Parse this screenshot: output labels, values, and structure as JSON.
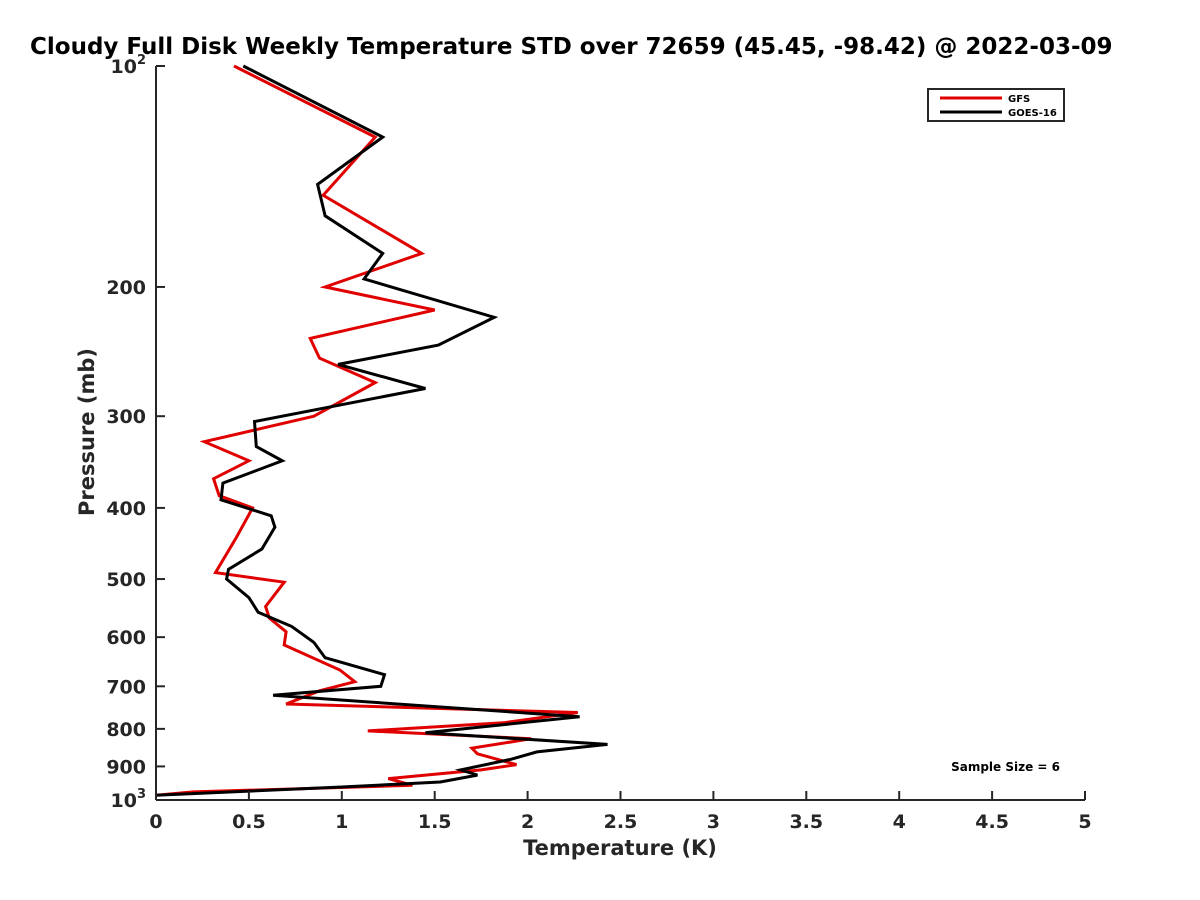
{
  "chart_data": {
    "type": "line",
    "title": "Cloudy Full Disk Weekly Temperature STD over 72659 (45.45, -98.42) @ 2022-03-09",
    "xlabel": "Temperature (K)",
    "ylabel": "Pressure (mb)",
    "xlim": [
      0,
      5
    ],
    "ylim": [
      100,
      1000
    ],
    "y_scale": "log",
    "y_reversed": true,
    "grid": false,
    "legend_position": "top-right",
    "x_ticks": [
      {
        "value": 0,
        "label": "0"
      },
      {
        "value": 0.5,
        "label": "0.5"
      },
      {
        "value": 1,
        "label": "1"
      },
      {
        "value": 1.5,
        "label": "1.5"
      },
      {
        "value": 2,
        "label": "2"
      },
      {
        "value": 2.5,
        "label": "2.5"
      },
      {
        "value": 3,
        "label": "3"
      },
      {
        "value": 3.5,
        "label": "3.5"
      },
      {
        "value": 4,
        "label": "4"
      },
      {
        "value": 4.5,
        "label": "4.5"
      },
      {
        "value": 5,
        "label": "5"
      }
    ],
    "y_ticks": [
      {
        "value": 100,
        "base": "10",
        "exp": "2"
      },
      {
        "value": 200,
        "label": "200"
      },
      {
        "value": 300,
        "label": "300"
      },
      {
        "value": 400,
        "label": "400"
      },
      {
        "value": 500,
        "label": "500"
      },
      {
        "value": 600,
        "label": "600"
      },
      {
        "value": 700,
        "label": "700"
      },
      {
        "value": 800,
        "label": "800"
      },
      {
        "value": 900,
        "label": "900"
      },
      {
        "value": 1000,
        "base": "10",
        "exp": "3"
      }
    ],
    "series": [
      {
        "name": "GFS",
        "color": "#e00000",
        "points": [
          [
            0.42,
            100
          ],
          [
            1.18,
            125
          ],
          [
            0.9,
            150
          ],
          [
            1.43,
            180
          ],
          [
            0.91,
            200
          ],
          [
            1.5,
            215
          ],
          [
            0.83,
            235
          ],
          [
            0.88,
            250
          ],
          [
            1.18,
            270
          ],
          [
            0.85,
            300
          ],
          [
            0.26,
            325
          ],
          [
            0.5,
            345
          ],
          [
            0.31,
            365
          ],
          [
            0.34,
            385
          ],
          [
            0.52,
            400
          ],
          [
            0.43,
            440
          ],
          [
            0.32,
            490
          ],
          [
            0.69,
            505
          ],
          [
            0.59,
            545
          ],
          [
            0.61,
            565
          ],
          [
            0.7,
            590
          ],
          [
            0.69,
            615
          ],
          [
            0.99,
            665
          ],
          [
            1.07,
            690
          ],
          [
            0.88,
            710
          ],
          [
            0.7,
            740
          ],
          [
            2.27,
            760
          ],
          [
            1.87,
            785
          ],
          [
            1.14,
            805
          ],
          [
            2.02,
            825
          ],
          [
            1.7,
            850
          ],
          [
            1.73,
            865
          ],
          [
            1.94,
            895
          ],
          [
            1.75,
            910
          ],
          [
            1.25,
            935
          ],
          [
            1.38,
            955
          ],
          [
            0.2,
            975
          ],
          [
            0,
            985
          ]
        ]
      },
      {
        "name": "GOES-16",
        "color": "#000000",
        "points": [
          [
            0.47,
            100
          ],
          [
            1.22,
            125
          ],
          [
            0.87,
            145
          ],
          [
            0.91,
            160
          ],
          [
            1.22,
            180
          ],
          [
            1.12,
            195
          ],
          [
            1.82,
            220
          ],
          [
            1.52,
            240
          ],
          [
            0.98,
            255
          ],
          [
            1.45,
            275
          ],
          [
            0.53,
            305
          ],
          [
            0.54,
            330
          ],
          [
            0.68,
            345
          ],
          [
            0.36,
            370
          ],
          [
            0.35,
            390
          ],
          [
            0.62,
            410
          ],
          [
            0.64,
            425
          ],
          [
            0.57,
            455
          ],
          [
            0.39,
            485
          ],
          [
            0.38,
            500
          ],
          [
            0.5,
            530
          ],
          [
            0.55,
            555
          ],
          [
            0.73,
            580
          ],
          [
            0.85,
            610
          ],
          [
            0.91,
            640
          ],
          [
            1.23,
            675
          ],
          [
            1.21,
            700
          ],
          [
            0.63,
            720
          ],
          [
            2.28,
            770
          ],
          [
            1.45,
            810
          ],
          [
            2.43,
            840
          ],
          [
            2.05,
            860
          ],
          [
            1.91,
            880
          ],
          [
            1.64,
            910
          ],
          [
            1.73,
            925
          ],
          [
            1.53,
            945
          ],
          [
            1.0,
            960
          ],
          [
            0,
            985
          ]
        ]
      }
    ],
    "annotation": "Sample Size = 6"
  }
}
